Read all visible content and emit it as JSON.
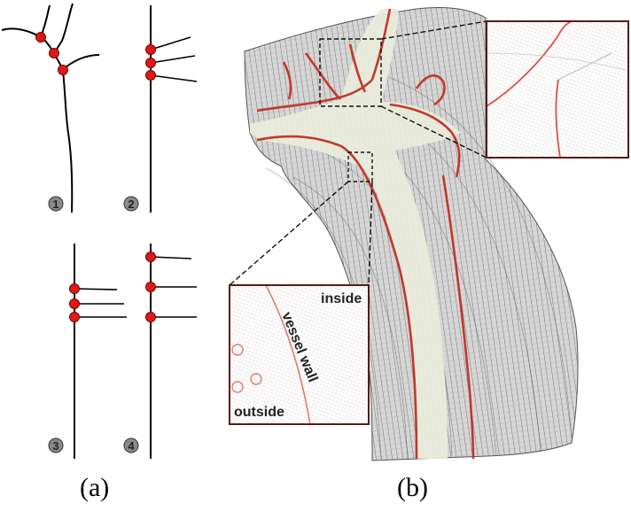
{
  "panels": {
    "a": {
      "caption": "(a)",
      "diagrams": [
        {
          "number": "1"
        },
        {
          "number": "2"
        },
        {
          "number": "3"
        },
        {
          "number": "4"
        }
      ]
    },
    "b": {
      "caption": "(b)",
      "inset_labels": {
        "inside": "inside",
        "wall": "vessel wall",
        "outside": "outside"
      }
    }
  },
  "colors": {
    "junction_dot": "#e01818",
    "vessel_wall": "#c0392b",
    "vessel_lumen": "#e9ecdc",
    "mesh_line": "#555555"
  }
}
